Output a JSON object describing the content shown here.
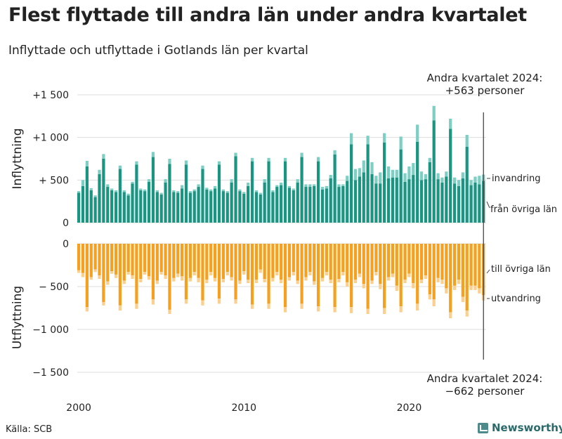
{
  "title": "Flest flyttade till andra län under andra kvartalet",
  "subtitle": "Inflyttade och utflyttade i Gotlands län per kvartal",
  "source": "Källa: SCB",
  "brand": "Newsworthy",
  "colors": {
    "in_domestic": "#1a9582",
    "in_immigration": "#7dcfc4",
    "out_domestic": "#f5a01f",
    "out_emigration": "#fbcf8e"
  },
  "chart_data": {
    "type": "bar",
    "stacked": true,
    "x_start": "2000Q1",
    "x_ticks": [
      "2000",
      "2010",
      "2020"
    ],
    "top_panel": {
      "ylabel": "Inflyttning",
      "ylim": [
        0,
        1500
      ],
      "y_ticks": [
        "+1 500",
        "+1 000",
        "+ 500",
        "0"
      ],
      "series": [
        {
          "name": "från övriga län",
          "values": [
            350,
            430,
            660,
            380,
            300,
            570,
            750,
            420,
            380,
            360,
            630,
            360,
            320,
            460,
            680,
            380,
            370,
            480,
            770,
            360,
            330,
            470,
            690,
            360,
            350,
            400,
            680,
            350,
            370,
            420,
            630,
            390,
            370,
            400,
            680,
            370,
            350,
            470,
            780,
            370,
            340,
            430,
            720,
            360,
            330,
            470,
            720,
            360,
            420,
            440,
            720,
            410,
            380,
            470,
            770,
            420,
            420,
            430,
            720,
            390,
            400,
            520,
            800,
            420,
            430,
            490,
            920,
            500,
            540,
            590,
            920,
            570,
            460,
            460,
            940,
            520,
            530,
            530,
            860,
            480,
            510,
            560,
            950,
            500,
            510,
            710,
            1200,
            510,
            470,
            540,
            1100,
            460,
            430,
            520,
            890,
            440,
            470,
            450,
            490
          ]
        },
        {
          "name": "invandring",
          "values": [
            20,
            70,
            65,
            25,
            20,
            50,
            55,
            30,
            20,
            20,
            40,
            20,
            20,
            20,
            40,
            20,
            20,
            30,
            60,
            20,
            20,
            40,
            60,
            20,
            20,
            40,
            50,
            20,
            20,
            30,
            40,
            20,
            20,
            30,
            40,
            20,
            20,
            40,
            40,
            20,
            20,
            40,
            40,
            20,
            20,
            40,
            40,
            20,
            20,
            30,
            40,
            20,
            20,
            40,
            50,
            30,
            30,
            20,
            50,
            30,
            30,
            40,
            50,
            30,
            20,
            60,
            130,
            130,
            100,
            140,
            100,
            140,
            90,
            130,
            110,
            140,
            90,
            90,
            150,
            100,
            150,
            140,
            200,
            100,
            60,
            50,
            170,
            70,
            60,
            60,
            120,
            70,
            70,
            70,
            140,
            60,
            70,
            100,
            74
          ]
        }
      ]
    },
    "bottom_panel": {
      "ylabel": "Utflyttning",
      "ylim": [
        -1500,
        0
      ],
      "y_ticks": [
        "0",
        "− 500",
        "−1 000",
        "−1 500"
      ],
      "series": [
        {
          "name": "till övriga län",
          "values": [
            -310,
            -340,
            -740,
            -390,
            -300,
            -370,
            -680,
            -440,
            -320,
            -360,
            -720,
            -430,
            -330,
            -370,
            -700,
            -410,
            -330,
            -380,
            -650,
            -430,
            -330,
            -370,
            -770,
            -400,
            -350,
            -380,
            -650,
            -400,
            -330,
            -400,
            -660,
            -420,
            -330,
            -400,
            -640,
            -410,
            -330,
            -390,
            -650,
            -430,
            -320,
            -420,
            -710,
            -420,
            -300,
            -410,
            -700,
            -400,
            -330,
            -420,
            -740,
            -390,
            -330,
            -430,
            -700,
            -390,
            -330,
            -440,
            -730,
            -400,
            -330,
            -420,
            -740,
            -410,
            -330,
            -450,
            -740,
            -420,
            -350,
            -470,
            -760,
            -430,
            -330,
            -470,
            -750,
            -390,
            -350,
            -490,
            -730,
            -420,
            -350,
            -460,
            -700,
            -420,
            -370,
            -590,
            -650,
            -400,
            -420,
            -520,
            -800,
            -490,
            -420,
            -620,
            -780,
            -490,
            -490,
            -520,
            -600
          ]
        },
        {
          "name": "utvandring",
          "values": [
            -30,
            -50,
            -50,
            -30,
            -30,
            -40,
            -40,
            -40,
            -30,
            -40,
            -60,
            -40,
            -30,
            -40,
            -60,
            -40,
            -30,
            -40,
            -60,
            -40,
            -30,
            -40,
            -50,
            -40,
            -40,
            -50,
            -50,
            -40,
            -40,
            -50,
            -60,
            -40,
            -40,
            -40,
            -60,
            -40,
            -40,
            -40,
            -50,
            -40,
            -40,
            -40,
            -50,
            -40,
            -40,
            -40,
            -60,
            -40,
            -40,
            -40,
            -60,
            -40,
            -40,
            -40,
            -60,
            -40,
            -40,
            -40,
            -60,
            -40,
            -40,
            -40,
            -60,
            -40,
            -40,
            -50,
            -70,
            -40,
            -40,
            -50,
            -60,
            -40,
            -40,
            -60,
            -70,
            -40,
            -40,
            -60,
            -70,
            -40,
            -40,
            -60,
            -80,
            -40,
            -40,
            -60,
            -80,
            -50,
            -50,
            -60,
            -70,
            -50,
            -50,
            -60,
            -70,
            -50,
            -50,
            -60,
            -62
          ]
        }
      ]
    },
    "annotations": {
      "top_line1": "Andra kvartalet 2024:",
      "top_line2": "+563 personer",
      "bottom_line1": "Andra kvartalet 2024:",
      "bottom_line2": "−662 personer",
      "label_immigration": "invandring",
      "label_in_domestic": "från övriga län",
      "label_out_domestic": "till övriga län",
      "label_emigration": "utvandring"
    }
  }
}
